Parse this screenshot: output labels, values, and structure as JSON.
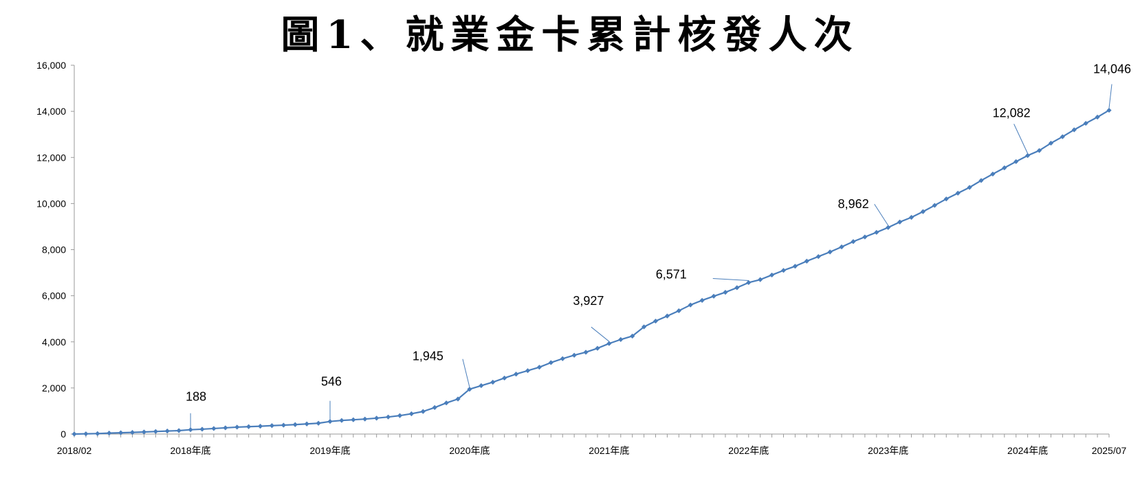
{
  "chart_data": {
    "type": "line",
    "title": "圖1、就業金卡累計核發人次",
    "xlabel": "",
    "ylabel": "",
    "ylim": [
      0,
      16000
    ],
    "yticks": [
      "0",
      "2,000",
      "4,000",
      "6,000",
      "8,000",
      "10,000",
      "12,000",
      "14,000",
      "16,000"
    ],
    "xtick_labels": [
      {
        "index": 0,
        "label": "2018/02"
      },
      {
        "index": 10,
        "label": "2018年底"
      },
      {
        "index": 22,
        "label": "2019年底"
      },
      {
        "index": 34,
        "label": "2020年底"
      },
      {
        "index": 46,
        "label": "2021年底"
      },
      {
        "index": 58,
        "label": "2022年底"
      },
      {
        "index": 70,
        "label": "2023年底"
      },
      {
        "index": 82,
        "label": "2024年底"
      },
      {
        "index": 89,
        "label": "2025/07"
      }
    ],
    "x_start": "2018/02",
    "x_end": "2025/07",
    "grid": false,
    "legend": "none",
    "line_color": "#4a7ebb",
    "series": [
      {
        "values": [
          0,
          10,
          20,
          40,
          55,
          70,
          90,
          110,
          130,
          150,
          188,
          210,
          240,
          270,
          300,
          320,
          340,
          365,
          385,
          410,
          440,
          470,
          546,
          590,
          620,
          650,
          690,
          740,
          800,
          880,
          980,
          1150,
          1350,
          1520,
          1945,
          2100,
          2250,
          2430,
          2600,
          2750,
          2900,
          3100,
          3270,
          3420,
          3550,
          3720,
          3927,
          4100,
          4250,
          4650,
          4900,
          5120,
          5350,
          5600,
          5800,
          5980,
          6150,
          6350,
          6571,
          6700,
          6900,
          7100,
          7280,
          7500,
          7700,
          7900,
          8120,
          8350,
          8550,
          8750,
          8962,
          9200,
          9400,
          9650,
          9920,
          10200,
          10450,
          10700,
          11000,
          11280,
          11550,
          11820,
          12082,
          12300,
          12620,
          12900,
          13200,
          13480,
          13750,
          14046
        ]
      }
    ],
    "data_labels": [
      {
        "index": 10,
        "text": "188"
      },
      {
        "index": 22,
        "text": "546"
      },
      {
        "index": 34,
        "text": "1,945"
      },
      {
        "index": 46,
        "text": "3,927"
      },
      {
        "index": 58,
        "text": "6,571"
      },
      {
        "index": 70,
        "text": "8,962"
      },
      {
        "index": 82,
        "text": "12,082"
      },
      {
        "index": 89,
        "text": "14,046"
      }
    ]
  }
}
